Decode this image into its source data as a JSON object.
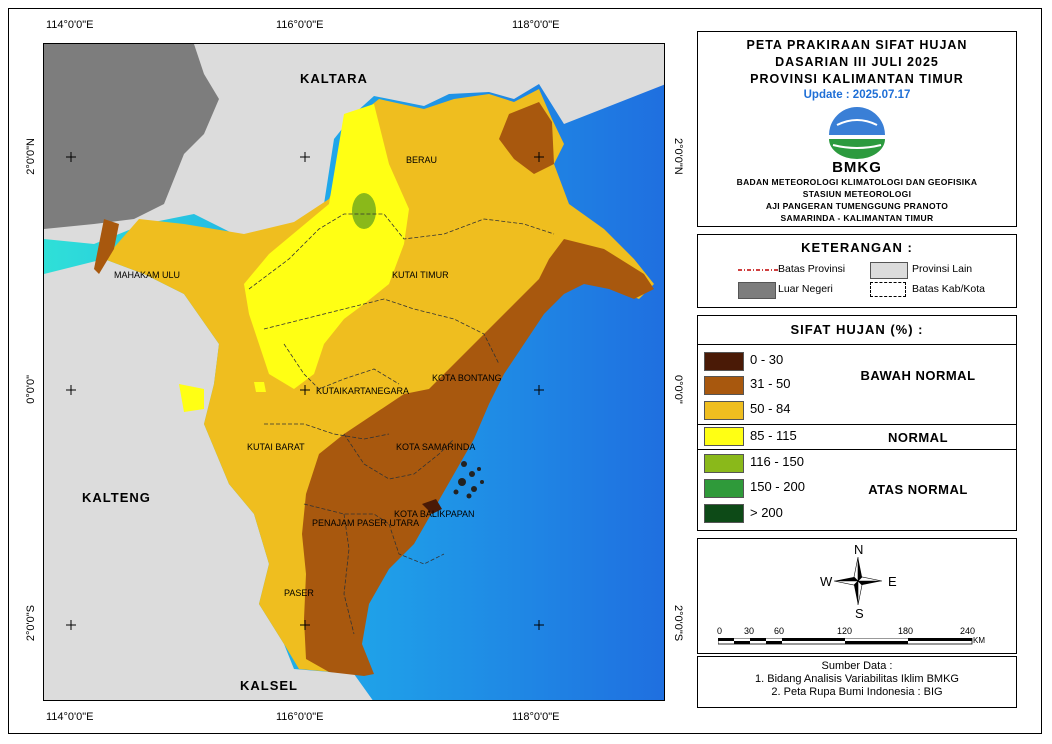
{
  "title": {
    "line1": "PETA PRAKIRAAN SIFAT HUJAN",
    "line2": "DASARIAN III JULI 2025",
    "line3": "PROVINSI KALIMANTAN TIMUR",
    "update": "Update : 2025.07.17",
    "logo_text": "BMKG",
    "inst1": "BADAN METEOROLOGI KLIMATOLOGI DAN GEOFISIKA",
    "inst2": "STASIUN METEOROLOGI",
    "inst3": "AJI PANGERAN TUMENGGUNG PRANOTO",
    "inst4": "SAMARINDA - KALIMANTAN TIMUR"
  },
  "coords": {
    "top": [
      "114°0'0\"E",
      "116°0'0\"E",
      "118°0'0\"E"
    ],
    "bottom": [
      "114°0'0\"E",
      "116°0'0\"E",
      "118°0'0\"E"
    ],
    "left": [
      "2°0'0\"N",
      "0°0'0\"",
      "2°0'0\"S"
    ],
    "right": [
      "2°0'0\"N",
      "0°0'0\"",
      "2°0'0\"S"
    ]
  },
  "map_labels": {
    "kaltara": "KALTARA",
    "kalteng": "KALTENG",
    "kalsel": "KALSEL",
    "berau": "BERAU",
    "mahakam_ulu": "MAHAKAM ULU",
    "kutai_timur": "KUTAI TIMUR",
    "kota_bontang": "KOTA BONTANG",
    "kutai_kartanegara": "KUTAIKARTANEGARA",
    "kutai_barat": "KUTAI BARAT",
    "kota_samarinda": "KOTA SAMARINDA",
    "kota_balikpapan": "KOTA BALIKPAPAN",
    "penajam": "PENAJAM PASER UTARA",
    "paser": "PASER"
  },
  "legend": {
    "heading": "KETERANGAN :",
    "batas_provinsi": "Batas Provinsi",
    "provinsi_lain": "Provinsi Lain",
    "luar_negeri": "Luar Negeri",
    "batas_kab": "Batas Kab/Kota"
  },
  "sifat": {
    "heading": "SIFAT HUJAN (%) :",
    "classes": [
      {
        "label": "0 - 30",
        "color": "#4a1a06"
      },
      {
        "label": "31 - 50",
        "color": "#a8580e"
      },
      {
        "label": "50 - 84",
        "color": "#efbe1f"
      },
      {
        "label": "85 - 115",
        "color": "#ffff14"
      },
      {
        "label": "116 - 150",
        "color": "#8ab91a"
      },
      {
        "label": "150 - 200",
        "color": "#2f9a3a"
      },
      {
        "label": "> 200",
        "color": "#0d4a17"
      }
    ],
    "cat_bawah": "BAWAH NORMAL",
    "cat_normal": "NORMAL",
    "cat_atas": "ATAS NORMAL"
  },
  "compass": {
    "n": "N",
    "s": "S",
    "e": "E",
    "w": "W"
  },
  "scale": {
    "ticks": [
      "0",
      "30",
      "60",
      "120",
      "180",
      "240"
    ],
    "unit": "KM"
  },
  "source": {
    "heading": "Sumber Data :",
    "line1": "1. Bidang Analisis Variabilitas Iklim BMKG",
    "line2": "2. Peta Rupa Bumi Indonesia : BIG"
  },
  "colors": {
    "sea_deep": "#1f7fe0",
    "sea_shallow": "#2fe0d8",
    "other_province": "#dcdcdc",
    "foreign": "#7d7d7d"
  }
}
